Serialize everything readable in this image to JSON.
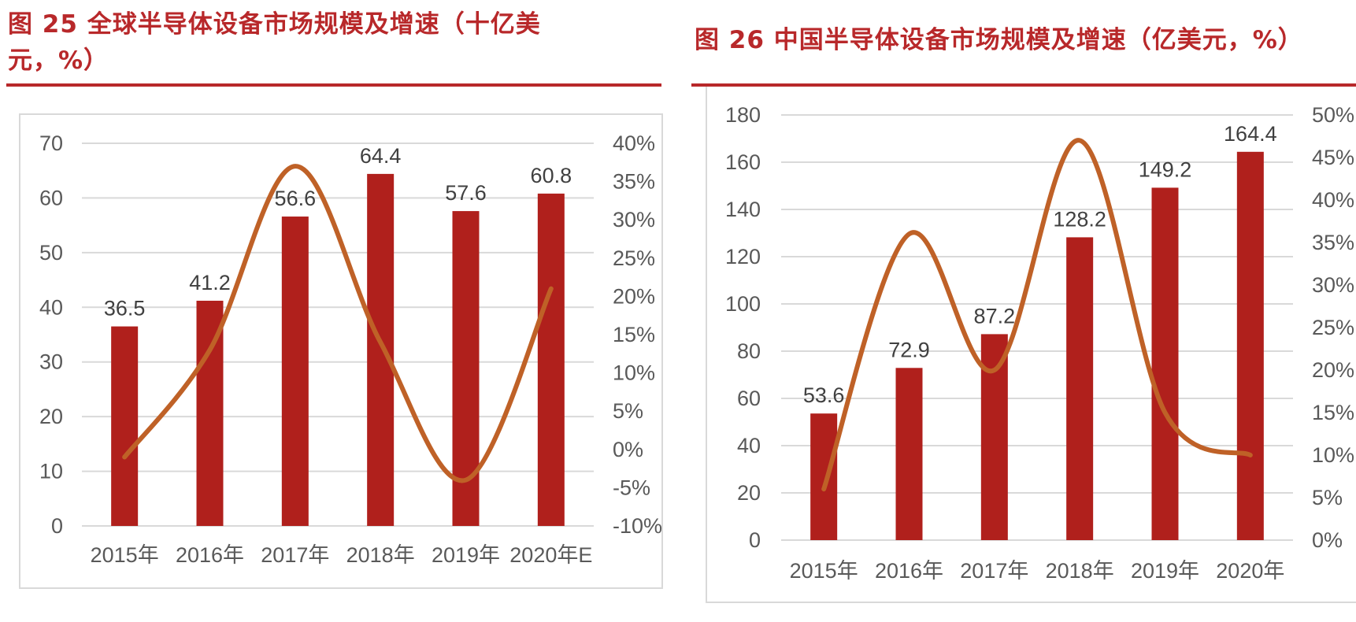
{
  "figures": [
    {
      "title": "图 25  全球半导体设备市场规模及增速（十亿美元，%）"
    },
    {
      "title": "图 26  中国半导体设备市场规模及增速（亿美元，%）"
    }
  ],
  "colors": {
    "bar": "#b0201c",
    "line": "#bf6127",
    "title": "#b8282a",
    "grid": "#d9d9d9",
    "axis_text": "#595959"
  },
  "chart_data": [
    {
      "type": "bar",
      "categories": [
        "2015年",
        "2016年",
        "2017年",
        "2018年",
        "2019年",
        "2020年E"
      ],
      "series": [
        {
          "type": "bar",
          "axis": "left",
          "values": [
            36.5,
            41.2,
            56.6,
            64.4,
            57.6,
            60.8
          ],
          "data_labels": [
            "36.5",
            "41.2",
            "56.6",
            "64.4",
            "57.6",
            "60.8"
          ]
        },
        {
          "type": "line",
          "axis": "right",
          "smooth": true,
          "values": [
            -0.01,
            0.13,
            0.37,
            0.14,
            -0.04,
            0.21
          ]
        }
      ],
      "ylim_left": [
        0,
        70
      ],
      "yticks_left": [
        "0",
        "10",
        "20",
        "30",
        "40",
        "50",
        "60",
        "70"
      ],
      "ylim_right": [
        -0.1,
        0.4
      ],
      "yticks_right": [
        "-10%",
        "-5%",
        "0%",
        "5%",
        "10%",
        "15%",
        "20%",
        "25%",
        "30%",
        "35%",
        "40%"
      ],
      "grid": true,
      "legend": "none"
    },
    {
      "type": "bar",
      "categories": [
        "2015年",
        "2016年",
        "2017年",
        "2018年",
        "2019年",
        "2020年"
      ],
      "series": [
        {
          "type": "bar",
          "axis": "left",
          "values": [
            53.6,
            72.9,
            87.2,
            128.2,
            149.2,
            164.4
          ],
          "data_labels": [
            "53.6",
            "72.9",
            "87.2",
            "128.2",
            "149.2",
            "164.4"
          ]
        },
        {
          "type": "line",
          "axis": "right",
          "smooth": true,
          "values": [
            0.06,
            0.36,
            0.2,
            0.47,
            0.15,
            0.1
          ]
        }
      ],
      "ylim_left": [
        0,
        180
      ],
      "yticks_left": [
        "0",
        "20",
        "40",
        "60",
        "80",
        "100",
        "120",
        "140",
        "160",
        "180"
      ],
      "ylim_right": [
        0,
        0.5
      ],
      "yticks_right": [
        "0%",
        "5%",
        "10%",
        "15%",
        "20%",
        "25%",
        "30%",
        "35%",
        "40%",
        "45%",
        "50%"
      ],
      "grid": true,
      "legend": "none"
    }
  ]
}
